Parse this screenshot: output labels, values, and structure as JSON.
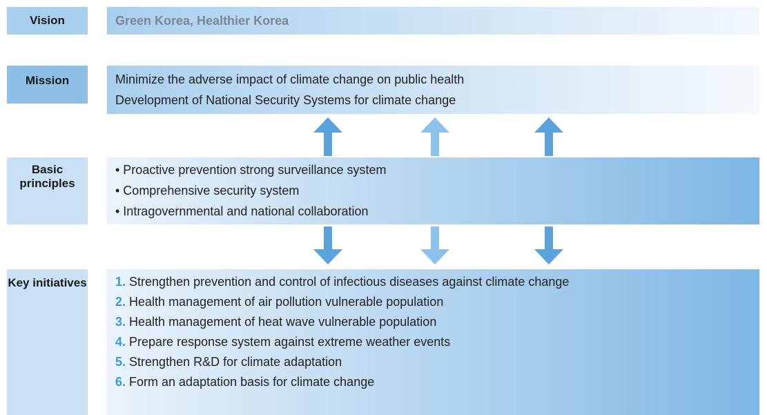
{
  "vision": {
    "label": "Vision",
    "text": "Green Korea, Healthier Korea"
  },
  "mission": {
    "label": "Mission",
    "lines": [
      "Minimize the adverse impact of climate change on public health",
      "Development of National Security Systems for climate change"
    ]
  },
  "principles": {
    "label": "Basic principles",
    "items": [
      "• Proactive prevention strong surveillance system",
      "• Comprehensive security system",
      "• Intragovernmental and national collaboration"
    ]
  },
  "initiatives": {
    "label": "Key initiatives",
    "items": [
      {
        "number": "1.",
        "text": "Strengthen prevention and control of infectious diseases against climate change"
      },
      {
        "number": "2.",
        "text": "Health management of air pollution vulnerable population"
      },
      {
        "number": "3.",
        "text": "Health management of heat wave vulnerable population"
      },
      {
        "number": "4.",
        "text": "Prepare response system against extreme weather events"
      },
      {
        "number": "5.",
        "text": "Strengthen R&D for climate adaptation"
      },
      {
        "number": "6.",
        "text": "Form an adaptation basis for climate change"
      }
    ]
  }
}
